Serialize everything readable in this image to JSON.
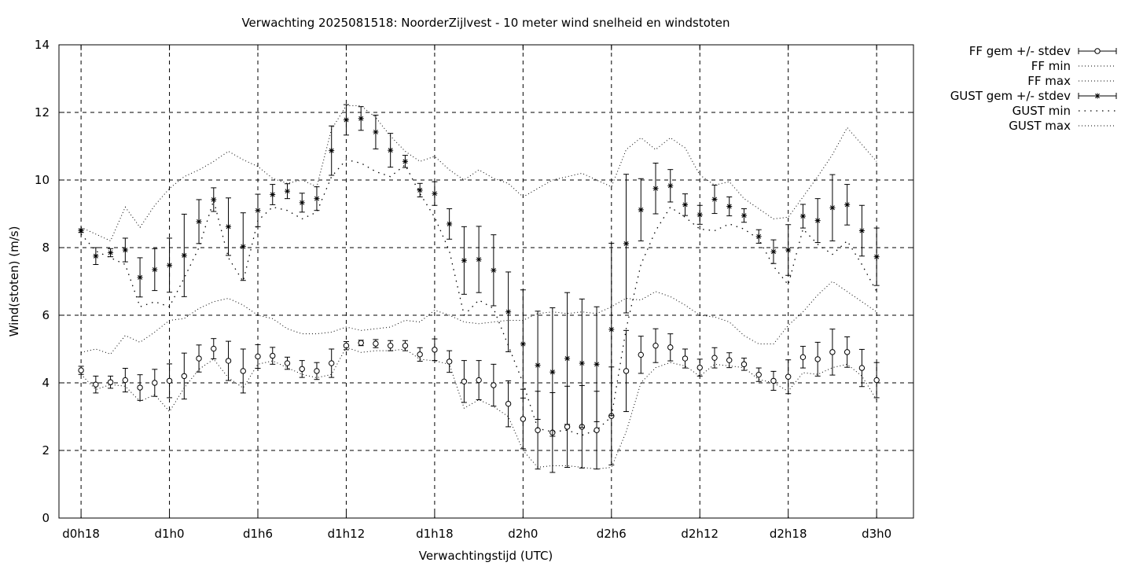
{
  "chart_data": {
    "type": "line",
    "title": "Verwachting 2025081518: NoorderZijlvest - 10 meter wind snelheid en windstoten",
    "xlabel": "Verwachtingstijd (UTC)",
    "ylabel": "Wind(stoten) (m/s)",
    "x_unit_note": "hours",
    "xlim": [
      -1.5,
      56.5
    ],
    "ylim": [
      0,
      14
    ],
    "yticks": [
      0,
      2,
      4,
      6,
      8,
      10,
      12,
      14
    ],
    "xticks": [
      {
        "x": 0,
        "label": "d0h18"
      },
      {
        "x": 6,
        "label": "d1h0"
      },
      {
        "x": 12,
        "label": "d1h6"
      },
      {
        "x": 18,
        "label": "d1h12"
      },
      {
        "x": 24,
        "label": "d1h18"
      },
      {
        "x": 30,
        "label": "d2h0"
      },
      {
        "x": 36,
        "label": "d2h6"
      },
      {
        "x": 42,
        "label": "d2h12"
      },
      {
        "x": 48,
        "label": "d2h18"
      },
      {
        "x": 54,
        "label": "d3h0"
      }
    ],
    "grid": true,
    "legend_position": "outside-top-right",
    "x": [
      0,
      1,
      2,
      3,
      4,
      5,
      6,
      7,
      8,
      9,
      10,
      11,
      12,
      13,
      14,
      15,
      16,
      17,
      18,
      19,
      20,
      21,
      22,
      23,
      24,
      25,
      26,
      27,
      28,
      29,
      30,
      31,
      32,
      33,
      34,
      35,
      36,
      37,
      38,
      39,
      40,
      41,
      42,
      43,
      44,
      45,
      46,
      47,
      48,
      49,
      50,
      51,
      52,
      53,
      54
    ],
    "series": [
      {
        "name": "FF gem +/- stdev",
        "style": "circle-errorbar",
        "mean": [
          4.37,
          3.95,
          4.02,
          4.08,
          3.86,
          4.0,
          4.06,
          4.2,
          4.72,
          5.01,
          4.65,
          4.35,
          4.78,
          4.8,
          4.58,
          4.41,
          4.35,
          4.58,
          5.1,
          5.18,
          5.16,
          5.1,
          5.1,
          4.84,
          4.98,
          4.63,
          4.04,
          4.08,
          3.93,
          3.38,
          2.93,
          2.6,
          2.53,
          2.7,
          2.7,
          2.6,
          3.02,
          4.35,
          4.83,
          5.1,
          5.05,
          4.72,
          4.45,
          4.74,
          4.67,
          4.55,
          4.24,
          4.06,
          4.18,
          4.76,
          4.7,
          4.91,
          4.91,
          4.44,
          4.08
        ],
        "stdev": [
          0.12,
          0.25,
          0.18,
          0.35,
          0.38,
          0.4,
          0.5,
          0.68,
          0.4,
          0.3,
          0.58,
          0.65,
          0.35,
          0.25,
          0.18,
          0.25,
          0.25,
          0.42,
          0.12,
          0.08,
          0.12,
          0.15,
          0.15,
          0.2,
          0.32,
          0.32,
          0.62,
          0.58,
          0.62,
          0.68,
          0.88,
          1.15,
          1.18,
          1.2,
          1.22,
          1.15,
          1.45,
          1.2,
          0.55,
          0.5,
          0.4,
          0.28,
          0.25,
          0.3,
          0.22,
          0.18,
          0.2,
          0.28,
          0.5,
          0.32,
          0.5,
          0.68,
          0.45,
          0.55,
          0.52
        ]
      },
      {
        "name": "FF min",
        "style": "dotted",
        "values": [
          4.25,
          3.8,
          3.95,
          3.9,
          3.45,
          3.65,
          3.15,
          3.85,
          4.4,
          4.7,
          4.15,
          3.85,
          4.55,
          4.65,
          4.45,
          4.25,
          4.15,
          4.25,
          5.05,
          4.9,
          4.95,
          4.95,
          5.0,
          4.7,
          4.65,
          4.55,
          3.25,
          3.5,
          3.3,
          3.0,
          2.0,
          1.5,
          1.55,
          1.55,
          1.5,
          1.45,
          1.5,
          2.55,
          4.0,
          4.45,
          4.6,
          4.5,
          4.2,
          4.55,
          4.5,
          4.45,
          4.1,
          4.0,
          3.75,
          4.3,
          4.25,
          4.45,
          4.55,
          4.2,
          3.5
        ]
      },
      {
        "name": "FF max",
        "style": "dotted",
        "values": [
          4.9,
          5.0,
          4.85,
          5.4,
          5.2,
          5.5,
          5.85,
          5.9,
          6.2,
          6.4,
          6.5,
          6.3,
          6.0,
          5.9,
          5.6,
          5.45,
          5.45,
          5.5,
          5.65,
          5.55,
          5.6,
          5.65,
          5.85,
          5.8,
          6.15,
          6.0,
          5.8,
          5.75,
          5.8,
          5.85,
          5.85,
          6.05,
          6.1,
          6.05,
          6.1,
          6.05,
          6.25,
          6.5,
          6.45,
          6.7,
          6.55,
          6.3,
          6.0,
          5.95,
          5.8,
          5.4,
          5.15,
          5.15,
          5.7,
          6.1,
          6.6,
          7.0,
          6.7,
          6.4,
          6.1
        ]
      },
      {
        "name": "GUST gem +/- stdev",
        "style": "star-errorbar",
        "mean": [
          8.5,
          7.75,
          7.85,
          7.93,
          7.12,
          7.35,
          7.48,
          7.77,
          8.77,
          9.42,
          8.62,
          8.03,
          9.1,
          9.57,
          9.67,
          9.33,
          9.45,
          10.87,
          11.78,
          11.82,
          11.42,
          10.88,
          10.55,
          9.7,
          9.6,
          8.7,
          7.62,
          7.65,
          7.33,
          6.1,
          5.15,
          4.52,
          4.32,
          4.72,
          4.58,
          4.55,
          5.58,
          8.12,
          9.12,
          9.75,
          9.83,
          9.27,
          8.97,
          9.43,
          9.22,
          8.95,
          8.33,
          7.88,
          7.93,
          8.93,
          8.8,
          9.18,
          9.27,
          8.5,
          7.73
        ],
        "stdev": [
          0.05,
          0.25,
          0.12,
          0.35,
          0.58,
          0.62,
          0.8,
          1.22,
          0.65,
          0.35,
          0.85,
          1.0,
          0.48,
          0.3,
          0.22,
          0.28,
          0.35,
          0.73,
          0.45,
          0.35,
          0.5,
          0.5,
          0.18,
          0.2,
          0.35,
          0.45,
          1.0,
          0.98,
          1.05,
          1.18,
          1.6,
          1.6,
          1.9,
          1.95,
          1.9,
          1.7,
          2.55,
          2.05,
          0.92,
          0.75,
          0.48,
          0.32,
          0.28,
          0.42,
          0.28,
          0.2,
          0.2,
          0.35,
          0.75,
          0.35,
          0.65,
          0.98,
          0.6,
          0.75,
          0.85
        ]
      },
      {
        "name": "GUST min",
        "style": "loosely-dotted",
        "values": [
          8.4,
          7.9,
          7.7,
          7.5,
          6.25,
          6.4,
          6.25,
          7.1,
          8.0,
          9.4,
          7.7,
          7.0,
          8.8,
          9.2,
          9.1,
          8.85,
          9.05,
          10.1,
          10.6,
          10.5,
          10.25,
          10.1,
          10.45,
          9.6,
          8.9,
          7.9,
          6.0,
          6.45,
          6.2,
          5.1,
          4.0,
          2.65,
          2.55,
          2.6,
          2.45,
          2.6,
          3.0,
          5.6,
          7.5,
          8.5,
          9.2,
          8.9,
          8.55,
          8.5,
          8.7,
          8.55,
          8.25,
          7.45,
          6.9,
          8.55,
          8.1,
          7.8,
          8.2,
          7.5,
          6.7
        ]
      },
      {
        "name": "GUST max",
        "style": "dotted",
        "values": [
          8.6,
          8.4,
          8.2,
          9.2,
          8.6,
          9.25,
          9.75,
          10.1,
          10.3,
          10.55,
          10.85,
          10.6,
          10.4,
          10.05,
          9.9,
          10.0,
          9.8,
          11.5,
          12.2,
          12.2,
          11.85,
          11.3,
          10.85,
          10.55,
          10.7,
          10.3,
          10.0,
          10.3,
          10.05,
          9.9,
          9.5,
          9.75,
          10.0,
          10.1,
          10.2,
          10.0,
          9.8,
          10.9,
          11.25,
          10.9,
          11.25,
          10.95,
          10.15,
          9.85,
          9.95,
          9.45,
          9.15,
          8.85,
          8.9,
          9.5,
          10.1,
          10.75,
          11.55,
          11.05,
          10.55
        ]
      }
    ]
  }
}
